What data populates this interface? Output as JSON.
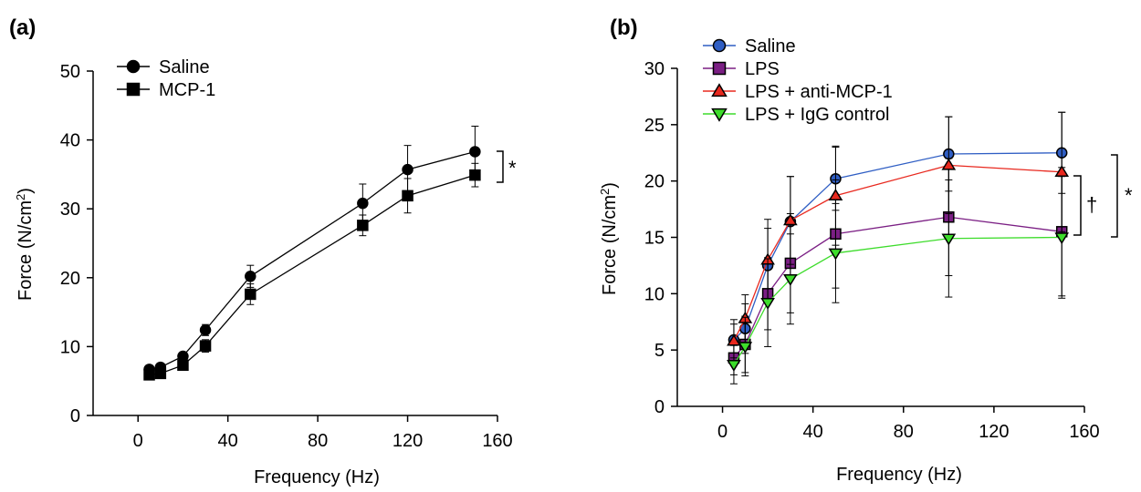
{
  "chart_data": [
    {
      "panel": "(a)",
      "type": "line",
      "xlabel": "Frequency (Hz)",
      "ylabel_main": "Force (N/cm",
      "ylabel_sup": "2",
      "ylabel_close": ")",
      "xlim": [
        -20,
        160
      ],
      "ylim": [
        0,
        50
      ],
      "xticks": [
        0,
        40,
        80,
        120,
        160
      ],
      "yticks": [
        0,
        10,
        20,
        30,
        40,
        50
      ],
      "series": [
        {
          "name": "Saline",
          "marker": "circle",
          "color": "#000000",
          "x": [
            5,
            10,
            20,
            30,
            50,
            100,
            120,
            150
          ],
          "y": [
            6.7,
            7.0,
            8.6,
            12.4,
            20.2,
            30.8,
            35.7,
            38.3
          ],
          "err": [
            0.4,
            0.4,
            0.5,
            0.8,
            1.6,
            2.8,
            3.5,
            3.7
          ]
        },
        {
          "name": "MCP-1",
          "marker": "square",
          "color": "#000000",
          "x": [
            5,
            10,
            20,
            30,
            50,
            100,
            120,
            150
          ],
          "y": [
            5.9,
            6.1,
            7.3,
            10.1,
            17.6,
            27.6,
            31.9,
            34.9
          ],
          "err": [
            0.3,
            0.4,
            0.5,
            0.9,
            1.5,
            1.5,
            2.5,
            1.7
          ]
        }
      ],
      "significance": [
        "*"
      ]
    },
    {
      "panel": "(b)",
      "type": "line",
      "xlabel": "Frequency (Hz)",
      "ylabel_main": "Force (N/cm",
      "ylabel_sup": "2",
      "ylabel_close": ")",
      "xlim": [
        -20,
        160
      ],
      "ylim": [
        0,
        30
      ],
      "xticks": [
        0,
        40,
        80,
        120,
        160
      ],
      "yticks": [
        0,
        5,
        10,
        15,
        20,
        25,
        30
      ],
      "series": [
        {
          "name": "Saline",
          "marker": "circle",
          "color": "#2f5ec4",
          "x": [
            5,
            10,
            20,
            30,
            50,
            100,
            150
          ],
          "y": [
            5.9,
            6.9,
            12.5,
            16.4,
            20.2,
            22.4,
            22.5
          ],
          "err": [
            1.8,
            2.2,
            3.3,
            4.0,
            2.8,
            3.3,
            3.6
          ]
        },
        {
          "name": "LPS",
          "marker": "square",
          "color": "#7b1f84",
          "x": [
            5,
            10,
            20,
            30,
            50,
            100,
            150
          ],
          "y": [
            4.3,
            5.5,
            10.0,
            12.7,
            15.3,
            16.8,
            15.5
          ],
          "err": [
            1.5,
            2.5,
            3.2,
            4.4,
            4.8,
            5.2,
            5.7
          ]
        },
        {
          "name": "LPS + anti-MCP-1",
          "marker": "triangle-up",
          "color": "#e8281e",
          "x": [
            5,
            10,
            20,
            30,
            50,
            100,
            150
          ],
          "y": [
            5.8,
            7.8,
            13.0,
            16.5,
            18.7,
            21.4,
            20.8
          ],
          "err": [
            1.5,
            2.1,
            3.6,
            3.9,
            4.4,
            4.3,
            5.3
          ]
        },
        {
          "name": "LPS + IgG control",
          "marker": "triangle-down",
          "color": "#3ddc2b",
          "x": [
            5,
            10,
            20,
            30,
            50,
            100,
            150
          ],
          "y": [
            3.7,
            5.3,
            9.2,
            11.3,
            13.6,
            14.9,
            15.0
          ],
          "err": [
            1.7,
            2.6,
            3.9,
            4.0,
            4.4,
            5.2,
            5.4
          ]
        }
      ],
      "significance": [
        "†",
        "*"
      ]
    }
  ]
}
